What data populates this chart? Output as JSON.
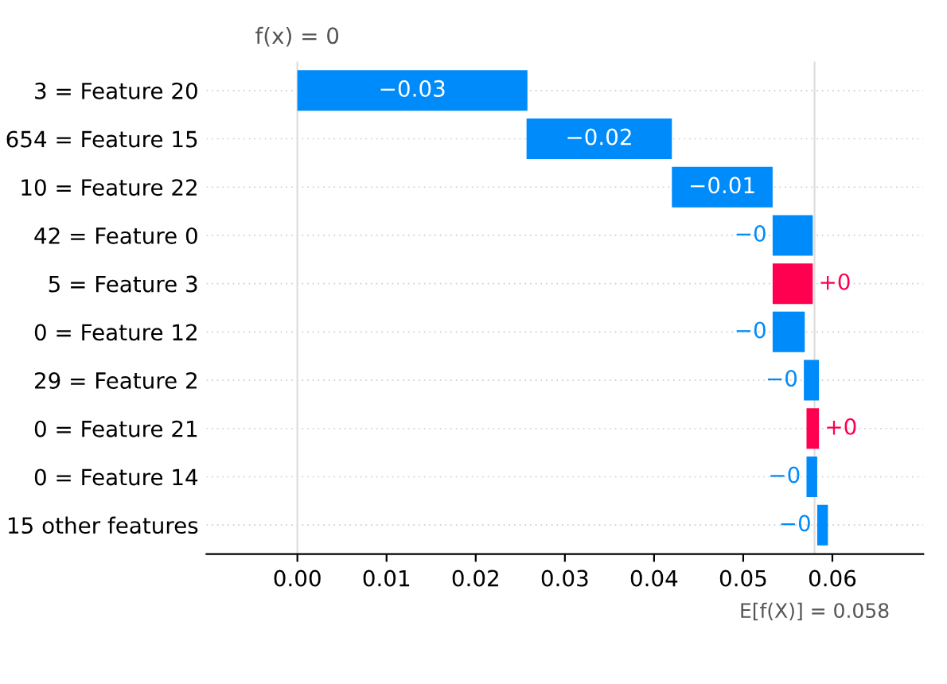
{
  "chart_data": {
    "type": "bar",
    "orientation": "horizontal",
    "categories": [
      "3 = Feature 20",
      "654 = Feature 15",
      "10 = Feature 22",
      "42 = Feature 0",
      "5 = Feature 3",
      "0 = Feature 12",
      "29 = Feature 2",
      "0 = Feature 21",
      "0 = Feature 14",
      "15 other features"
    ],
    "values": [
      -0.0258,
      -0.0163,
      -0.0113,
      -0.0045,
      0.0045,
      -0.0036,
      -0.0017,
      0.0014,
      -0.0012,
      -0.0012
    ],
    "base": [
      0.0258,
      0.042,
      0.0533,
      0.0578,
      0.0533,
      0.0569,
      0.0585,
      0.0571,
      0.0583,
      0.0595
    ],
    "colors": [
      "#008bfb",
      "#008bfb",
      "#008bfb",
      "#008bfb",
      "#ff0051",
      "#008bfb",
      "#008bfb",
      "#ff0051",
      "#008bfb",
      "#008bfb"
    ],
    "value_labels": [
      "−0.03",
      "−0.02",
      "−0.01",
      "−0",
      "+0",
      "−0",
      "−0",
      "+0",
      "−0",
      "−0"
    ],
    "xlim": [
      -0.0102,
      0.0702
    ],
    "xticks": [
      {
        "value": 0,
        "label": "0.00"
      },
      {
        "value": 0.01,
        "label": "0.01"
      },
      {
        "value": 0.02,
        "label": "0.02"
      },
      {
        "value": 0.03,
        "label": "0.03"
      },
      {
        "value": 0.04,
        "label": "0.04"
      },
      {
        "value": 0.05,
        "label": "0.05"
      },
      {
        "value": 0.06,
        "label": "0.06"
      }
    ],
    "ref_lines": [
      {
        "axis": "x",
        "value": 0,
        "label": "f(x) = 0",
        "color": "#dddddd"
      },
      {
        "axis": "x",
        "value": 0.058,
        "label": "E[f(X)] = 0.058",
        "color": "#dddddd"
      }
    ],
    "grid": "y"
  }
}
